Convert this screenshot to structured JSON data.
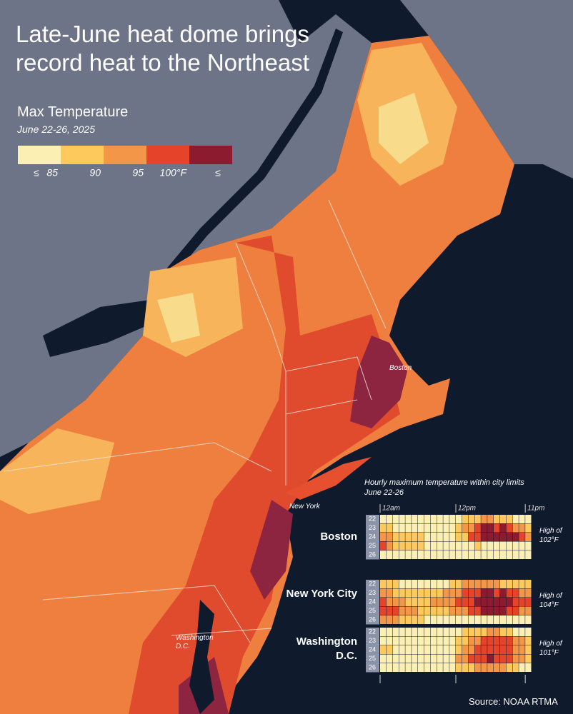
{
  "title": "Late-June heat dome brings record heat to the Northeast",
  "legend": {
    "title": "Max Temperature",
    "subtitle": "June 22-26, 2025",
    "colors": [
      "#fbefb3",
      "#fdc95c",
      "#f39647",
      "#e6432b",
      "#8c1b30"
    ],
    "thresholds": [
      85,
      90,
      95,
      {
        "value": 100,
        "label": "100°F"
      }
    ],
    "le_left": "≤",
    "le_right": "≤"
  },
  "map_labels": [
    "Boston",
    "New York",
    "Washington D.C."
  ],
  "heatmap": {
    "title": "Hourly maximum temperature within city limits",
    "subtitle": "June 22-26",
    "hour_ticks": [
      {
        "value": 0,
        "label": "12am"
      },
      {
        "value": 12,
        "label": "12pm"
      },
      {
        "value": 23,
        "label": "11pm"
      }
    ],
    "days": [
      22,
      23,
      24,
      25,
      26
    ],
    "cities": [
      {
        "name": "Boston",
        "high_prefix": "High of",
        "high": "102°F",
        "values": [
          [
            80,
            80,
            80,
            80,
            80,
            80,
            80,
            80,
            80,
            80,
            80,
            80,
            80,
            88,
            88,
            88,
            93,
            93,
            88,
            88,
            88,
            80,
            80,
            80
          ],
          [
            88,
            88,
            80,
            80,
            80,
            80,
            80,
            80,
            80,
            80,
            80,
            80,
            88,
            93,
            93,
            98,
            102,
            102,
            98,
            102,
            98,
            93,
            93,
            88
          ],
          [
            93,
            93,
            88,
            88,
            88,
            88,
            88,
            80,
            80,
            80,
            80,
            80,
            88,
            88,
            98,
            98,
            102,
            102,
            102,
            102,
            102,
            102,
            98,
            93
          ],
          [
            98,
            93,
            88,
            88,
            88,
            88,
            88,
            80,
            80,
            80,
            80,
            80,
            80,
            80,
            80,
            88,
            80,
            80,
            80,
            80,
            80,
            80,
            80,
            80
          ],
          [
            80,
            80,
            80,
            80,
            80,
            80,
            80,
            80,
            80,
            80,
            80,
            80,
            80,
            80,
            80,
            80,
            80,
            80,
            80,
            80,
            80,
            80,
            80,
            80
          ]
        ]
      },
      {
        "name": "New York City",
        "high_prefix": "High of",
        "high": "104°F",
        "values": [
          [
            88,
            88,
            88,
            80,
            80,
            80,
            80,
            80,
            80,
            80,
            80,
            88,
            88,
            93,
            93,
            93,
            93,
            93,
            93,
            88,
            88,
            88,
            88,
            88
          ],
          [
            93,
            93,
            88,
            88,
            88,
            88,
            88,
            88,
            88,
            88,
            93,
            93,
            93,
            98,
            98,
            98,
            102,
            102,
            98,
            102,
            98,
            98,
            93,
            93
          ],
          [
            98,
            93,
            93,
            93,
            88,
            88,
            88,
            88,
            93,
            93,
            93,
            93,
            98,
            98,
            98,
            102,
            102,
            102,
            102,
            102,
            102,
            98,
            98,
            98
          ],
          [
            98,
            98,
            98,
            93,
            93,
            93,
            88,
            88,
            88,
            88,
            88,
            93,
            93,
            93,
            98,
            98,
            102,
            102,
            102,
            102,
            98,
            98,
            93,
            93
          ],
          [
            93,
            93,
            93,
            88,
            88,
            88,
            88,
            80,
            80,
            80,
            80,
            80,
            80,
            80,
            80,
            80,
            80,
            80,
            80,
            80,
            80,
            80,
            80,
            80
          ]
        ]
      },
      {
        "name": "Washington D.C.",
        "high_prefix": "High of",
        "high": "101°F",
        "values": [
          [
            80,
            80,
            80,
            80,
            80,
            80,
            80,
            80,
            80,
            80,
            80,
            80,
            80,
            88,
            88,
            88,
            88,
            93,
            93,
            88,
            88,
            80,
            80,
            80
          ],
          [
            80,
            80,
            80,
            80,
            80,
            80,
            80,
            80,
            80,
            80,
            80,
            80,
            88,
            88,
            93,
            93,
            98,
            98,
            98,
            98,
            98,
            93,
            93,
            88
          ],
          [
            88,
            88,
            80,
            80,
            80,
            80,
            80,
            80,
            80,
            80,
            80,
            80,
            88,
            93,
            93,
            98,
            98,
            98,
            98,
            98,
            98,
            93,
            93,
            88
          ],
          [
            80,
            80,
            80,
            80,
            80,
            80,
            80,
            80,
            80,
            80,
            80,
            80,
            93,
            93,
            98,
            98,
            98,
            102,
            98,
            98,
            98,
            93,
            93,
            88
          ],
          [
            80,
            80,
            80,
            80,
            80,
            80,
            80,
            80,
            80,
            80,
            80,
            80,
            88,
            88,
            88,
            93,
            93,
            93,
            93,
            93,
            88,
            88,
            80,
            80
          ]
        ]
      }
    ]
  },
  "source": "Source: NOAA RTMA"
}
